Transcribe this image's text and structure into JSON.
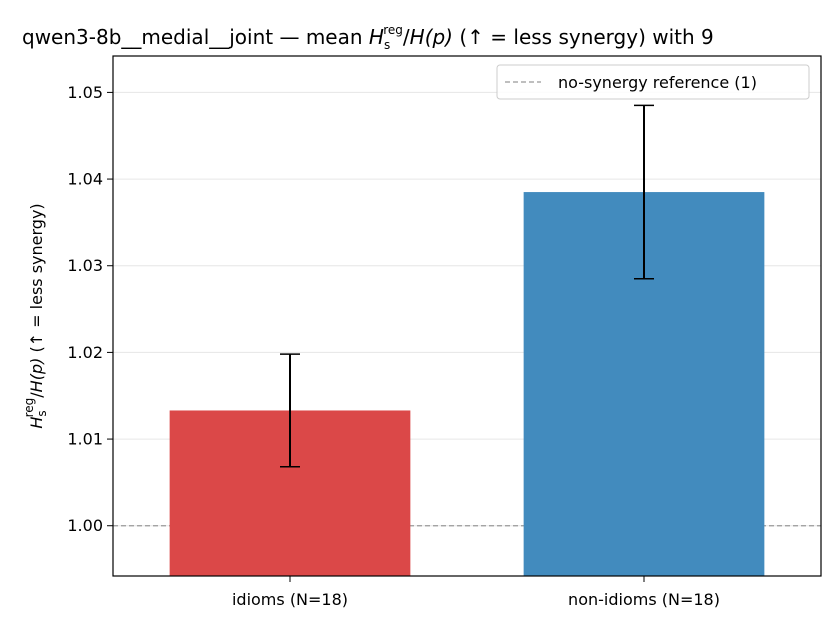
{
  "chart_data": {
    "type": "bar",
    "title": {
      "prefix": "qwen3-8b__medial__joint — mean ",
      "h": "H",
      "sub": "s",
      "sup": "reg",
      "slash": "/",
      "hp": "H",
      "p": "(p)",
      "suffix": "  (↑ = less synergy) with 9"
    },
    "ylabel": {
      "h": "H",
      "sub": "s",
      "sup": "reg",
      "slash": "/",
      "hp": "H",
      "p": "(p)",
      "suffix": "  (↑ = less synergy)"
    },
    "xlabel": "",
    "categories": [
      "idioms (N=18)",
      "non-idioms (N=18)"
    ],
    "values": [
      1.0133,
      1.0385
    ],
    "errors": [
      0.0065,
      0.01
    ],
    "colors": [
      "#db4848",
      "#428bbe"
    ],
    "ylim": [
      0.9942,
      1.0542
    ],
    "yticks": [
      1.0,
      1.01,
      1.02,
      1.03,
      1.04,
      1.05
    ],
    "ytick_labels": [
      "1.00",
      "1.01",
      "1.02",
      "1.03",
      "1.04",
      "1.05"
    ],
    "reference": {
      "value": 1.0,
      "label": "no-synergy reference (1)",
      "color": "#999999"
    },
    "grid": true,
    "legend_placement": "top-right"
  }
}
